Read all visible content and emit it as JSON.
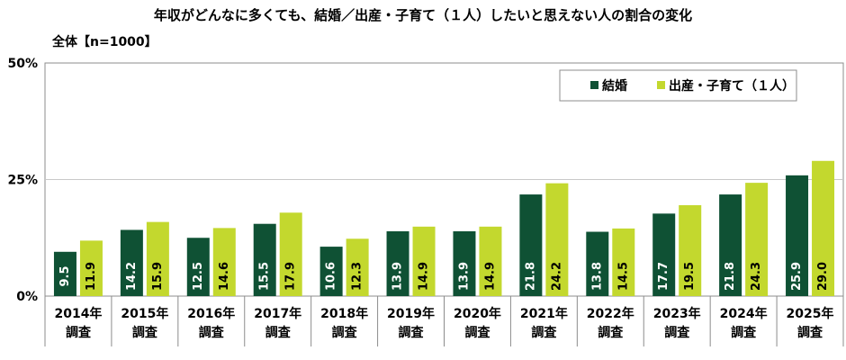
{
  "chart_data": {
    "type": "bar",
    "title": "年収がどんなに多くても、結婚／出産・子育て（１人）したいと思えない人の割合の変化",
    "subtitle": "全体【n=1000】",
    "categories_line1": [
      "2014年",
      "2015年",
      "2016年",
      "2017年",
      "2018年",
      "2019年",
      "2020年",
      "2021年",
      "2022年",
      "2023年",
      "2024年",
      "2025年"
    ],
    "categories_line2": "調査",
    "ylim": [
      0,
      50
    ],
    "yticks": [
      "0%",
      "25%",
      "50%"
    ],
    "legend_position": "top-right",
    "series": [
      {
        "name": "結婚",
        "color": "#0f5134",
        "text_color": "#ffffff",
        "values": [
          9.5,
          14.2,
          12.5,
          15.5,
          10.6,
          13.9,
          13.9,
          21.8,
          13.8,
          17.7,
          21.8,
          25.9
        ]
      },
      {
        "name": "出産・子育て（１人）",
        "color": "#c3d82e",
        "text_color": "#000000",
        "values": [
          11.9,
          15.9,
          14.6,
          17.9,
          12.3,
          14.9,
          14.9,
          24.2,
          14.5,
          19.5,
          24.3,
          29.0
        ]
      }
    ]
  }
}
